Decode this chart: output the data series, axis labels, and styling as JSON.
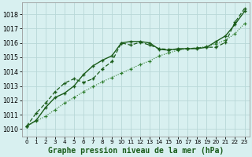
{
  "xlabel": "Graphe pression niveau de la mer (hPa)",
  "ylim": [
    1009.5,
    1018.8
  ],
  "xlim": [
    -0.5,
    23.5
  ],
  "yticks": [
    1010,
    1011,
    1012,
    1013,
    1014,
    1015,
    1016,
    1017,
    1018
  ],
  "xticks": [
    0,
    1,
    2,
    3,
    4,
    5,
    6,
    7,
    8,
    9,
    10,
    11,
    12,
    13,
    14,
    15,
    16,
    17,
    18,
    19,
    20,
    21,
    22,
    23
  ],
  "bg_color": "#d8f0f0",
  "grid_color": "#b8d8d8",
  "dark_green": "#1a5c1a",
  "mid_green": "#2e7d2e",
  "series1_x": [
    0,
    1,
    2,
    3,
    4,
    5,
    6,
    7,
    8,
    9,
    10,
    11,
    12,
    13,
    14,
    15,
    16,
    17,
    18,
    19,
    20,
    21,
    22,
    23
  ],
  "series1_y": [
    1010.2,
    1010.6,
    1011.5,
    1012.2,
    1012.5,
    1013.0,
    1013.8,
    1014.4,
    1014.8,
    1015.1,
    1016.0,
    1016.1,
    1016.1,
    1016.0,
    1015.55,
    1015.5,
    1015.6,
    1015.6,
    1015.6,
    1015.7,
    1016.1,
    1016.5,
    1017.3,
    1018.2
  ],
  "series2_x": [
    0,
    1,
    2,
    3,
    4,
    5,
    6,
    7,
    8,
    9,
    10,
    11,
    12,
    13,
    14,
    15,
    16,
    17,
    18,
    19,
    20,
    21,
    22,
    23
  ],
  "series2_y": [
    1010.2,
    1011.1,
    1011.8,
    1012.6,
    1013.2,
    1013.5,
    1013.25,
    1013.5,
    1014.2,
    1014.7,
    1016.0,
    1015.85,
    1016.05,
    1015.85,
    1015.6,
    1015.55,
    1015.55,
    1015.6,
    1015.65,
    1015.7,
    1015.7,
    1016.05,
    1017.45,
    1018.4
  ],
  "series3_x": [
    0,
    1,
    2,
    3,
    4,
    5,
    6,
    7,
    8,
    9,
    10,
    11,
    12,
    13,
    14,
    15,
    16,
    17,
    18,
    19,
    20,
    21,
    22,
    23
  ],
  "series3_y": [
    1010.2,
    1010.55,
    1010.9,
    1011.35,
    1011.8,
    1012.2,
    1012.6,
    1012.95,
    1013.3,
    1013.6,
    1013.9,
    1014.2,
    1014.5,
    1014.75,
    1015.1,
    1015.3,
    1015.5,
    1015.6,
    1015.65,
    1015.75,
    1015.95,
    1016.2,
    1016.65,
    1017.35
  ],
  "fontsize_label": 7.0,
  "fontsize_tick": 6.0
}
